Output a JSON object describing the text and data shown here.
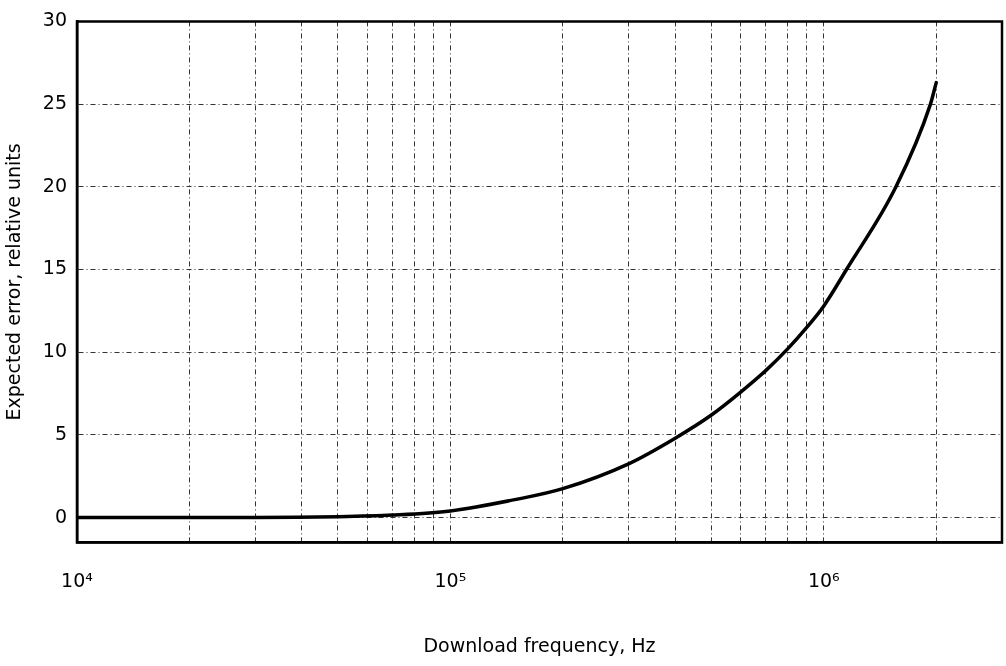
{
  "chart_data": {
    "type": "line",
    "xlabel": "Download frequency, Hz",
    "ylabel": "Expected error, relative units",
    "log": "x",
    "xlim": [
      10000,
      3000000
    ],
    "xticks": [
      {
        "value": 10000,
        "label": "10⁴"
      },
      {
        "value": 20000,
        "label": null
      },
      {
        "value": 30000,
        "label": null
      },
      {
        "value": 40000,
        "label": null
      },
      {
        "value": 50000,
        "label": null
      },
      {
        "value": 60000,
        "label": null
      },
      {
        "value": 70000,
        "label": null
      },
      {
        "value": 80000,
        "label": null
      },
      {
        "value": 90000,
        "label": null
      },
      {
        "value": 100000,
        "label": "10⁵"
      },
      {
        "value": 200000,
        "label": null
      },
      {
        "value": 300000,
        "label": null
      },
      {
        "value": 400000,
        "label": null
      },
      {
        "value": 500000,
        "label": null
      },
      {
        "value": 600000,
        "label": null
      },
      {
        "value": 700000,
        "label": null
      },
      {
        "value": 800000,
        "label": null
      },
      {
        "value": 900000,
        "label": null
      },
      {
        "value": 1000000,
        "label": "10⁶"
      },
      {
        "value": 2000000,
        "label": null
      }
    ],
    "ylim": [
      -1.5,
      30
    ],
    "yticks": [
      0,
      5,
      10,
      15,
      20,
      25,
      30
    ],
    "grid": true,
    "legend": false,
    "marker": "none",
    "line_style": "solid",
    "x": [
      10000,
      30000,
      50000,
      70000,
      100000,
      150000,
      200000,
      300000,
      400000,
      500000,
      600000,
      700000,
      800000,
      900000,
      1000000,
      1150000,
      1560000,
      1930000,
      2000000
    ],
    "series": [
      {
        "color": "#000000",
        "values": [
          0,
          0,
          0.05,
          0.15,
          0.4,
          1.1,
          1.75,
          3.25,
          4.8,
          6.2,
          7.6,
          8.9,
          10.2,
          11.5,
          12.8,
          15,
          20,
          25,
          26.3
        ]
      }
    ]
  }
}
